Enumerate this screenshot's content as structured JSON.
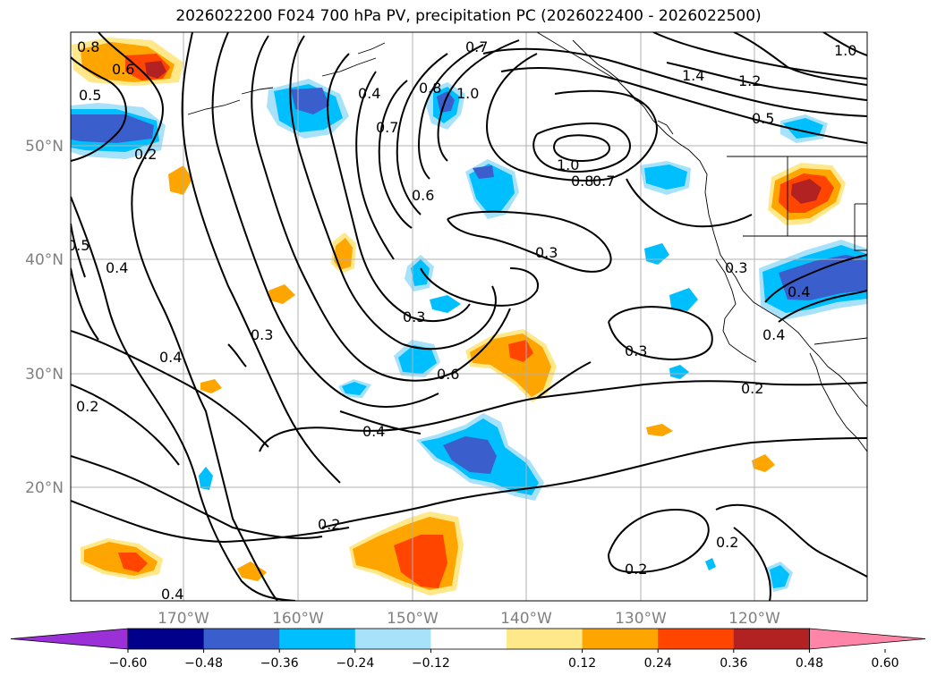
{
  "title": "2026022200 F024 700 hPa PV, precipitation PC (2026022400 - 2026022500)",
  "lat_labels": [
    "50°N",
    "40°N",
    "30°N",
    "20°N"
  ],
  "lon_labels": [
    "170°W",
    "160°W",
    "150°W",
    "140°W",
    "130°W",
    "120°W"
  ],
  "contour_labels": [
    "0.8",
    "0.6",
    "0.5",
    "0.2",
    "0.5",
    "0.4",
    "0.4",
    "0.7",
    "0.8",
    "1.0",
    "0.7",
    "0.6",
    "1.4",
    "1.2",
    "1.0",
    "0.5",
    "1.0",
    "0.8",
    "0.7",
    "0.3",
    "0.3",
    "0.3",
    "0.4",
    "0.6",
    "0.3",
    "0.3",
    "0.4",
    "0.2",
    "0.4",
    "0.2",
    "0.2",
    "0.2",
    "0.2",
    "0.4",
    "0.4"
  ],
  "colorbar": {
    "ticks": [
      "−0.60",
      "−0.48",
      "−0.36",
      "−0.24",
      "−0.12",
      "0.12",
      "0.24",
      "0.36",
      "0.48",
      "0.60"
    ],
    "colors": [
      "#9b30d9",
      "#00008b",
      "#3a5fcd",
      "#00bfff",
      "#a8e2fa",
      "#ffffff",
      "#ffe88a",
      "#ffa500",
      "#ff4500",
      "#b22222",
      "#ff85a8"
    ]
  },
  "precip_colors": {
    "neg_light": "#a8e2fa",
    "neg_mid": "#00bfff",
    "neg_strong": "#3a5fcd",
    "pos_light": "#ffe88a",
    "pos_mid": "#ffa500",
    "pos_strong": "#ff4500",
    "pos_max": "#b22222"
  }
}
